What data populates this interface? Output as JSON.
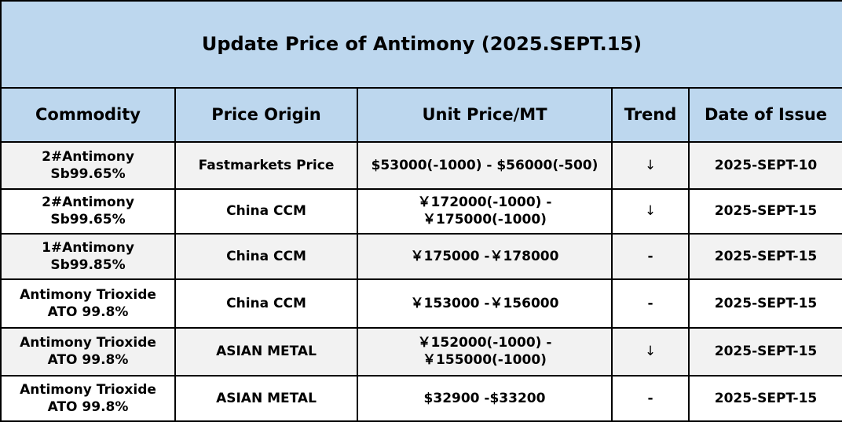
{
  "title": "Update Price of Antimony (2025.SEPT.15)",
  "headers": [
    "Commodity",
    "Price Origin",
    "Unit Price/MT",
    "Trend",
    "Date of Issue"
  ],
  "rows": [
    {
      "commodity": "2#Antimony  Sb99.65%",
      "origin": "Fastmarkets Price",
      "price": "$53000(-1000)  - $56000(-500)",
      "trend": "↓",
      "trend_name": "arrow-down-icon",
      "date": "2025-SEPT-10"
    },
    {
      "commodity": "2#Antimony  Sb99.65%",
      "origin": "China CCM",
      "price": "￥172000(-1000)  -￥175000(-1000)",
      "trend": "↓",
      "trend_name": "arrow-down-icon",
      "date": "2025-SEPT-15"
    },
    {
      "commodity": "1#Antimony  Sb99.85%",
      "origin": "China CCM",
      "price": "￥175000 -￥178000",
      "trend": "-",
      "trend_name": "dash",
      "date": "2025-SEPT-15"
    },
    {
      "commodity": "Antimony Trioxide\nATO 99.8%",
      "origin": "China CCM",
      "price": "￥153000 -￥156000",
      "trend": "-",
      "trend_name": "dash",
      "date": "2025-SEPT-15"
    },
    {
      "commodity": "Antimony Trioxide\nATO 99.8%",
      "origin": "ASIAN METAL",
      "price": "￥152000(-1000) -￥155000(-1000)",
      "trend": "↓",
      "trend_name": "arrow-down-icon",
      "date": "2025-SEPT-15"
    },
    {
      "commodity": "Antimony Trioxide\nATO 99.8%",
      "origin": "ASIAN METAL",
      "price": "$32900 -$33200",
      "trend": "-",
      "trend_name": "dash",
      "date": "2025-SEPT-15"
    }
  ],
  "colors": {
    "header_bg": "#bdd7ee",
    "row_alt_bg": "#f2f2f2",
    "border": "#000000"
  }
}
